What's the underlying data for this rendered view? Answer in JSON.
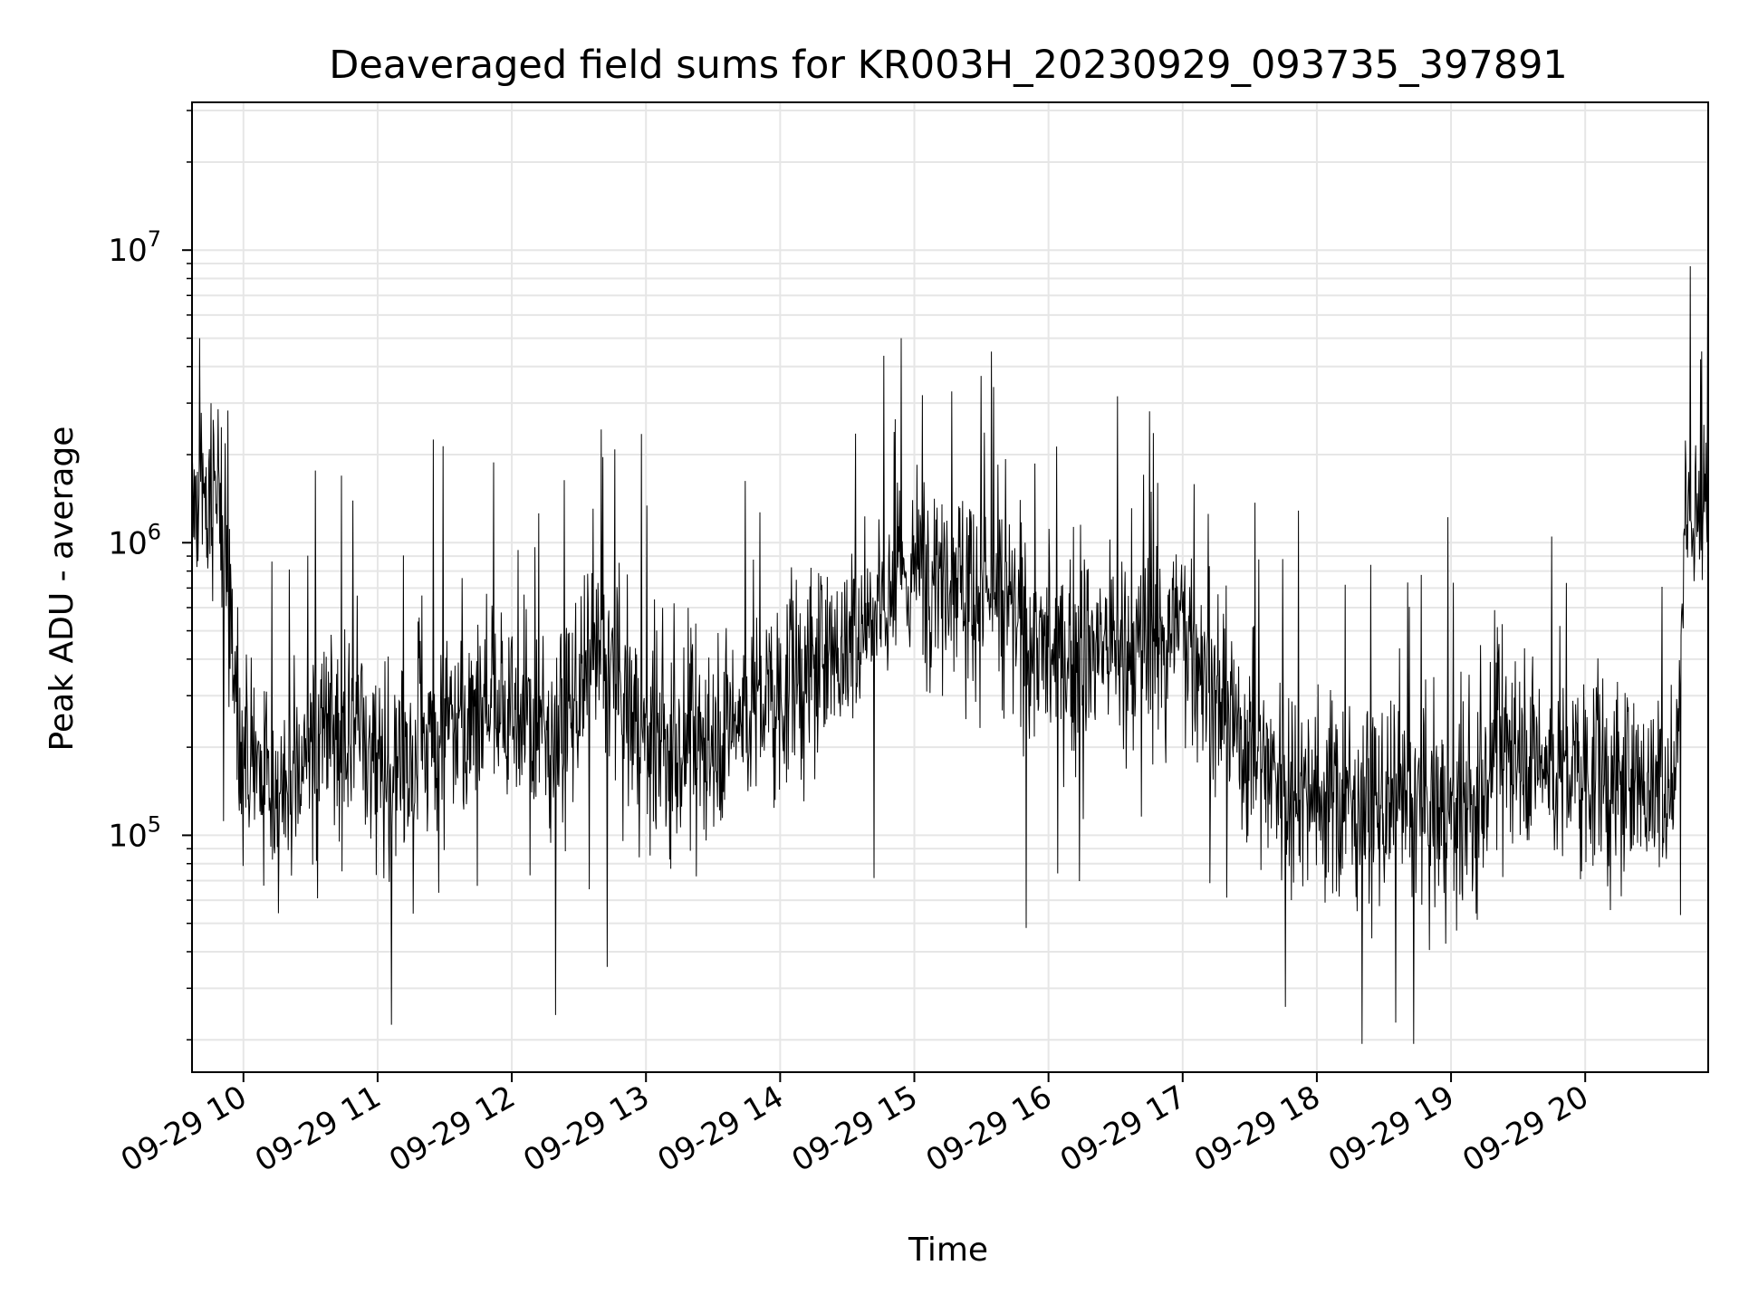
{
  "chart_data": {
    "type": "line",
    "title": "Deaveraged field sums for KR003H_20230929_093735_397891",
    "xlabel": "Time",
    "ylabel": "Peak ADU - average",
    "yscale": "log",
    "grid": true,
    "legend": "none",
    "xlim": [
      "2023-09-29 09:37",
      "2023-09-29 20:55"
    ],
    "ylim": [
      15500,
      32000000
    ],
    "x_ticks": [
      {
        "value": "2023-09-29 10:00",
        "label": "09-29 10"
      },
      {
        "value": "2023-09-29 11:00",
        "label": "09-29 11"
      },
      {
        "value": "2023-09-29 12:00",
        "label": "09-29 12"
      },
      {
        "value": "2023-09-29 13:00",
        "label": "09-29 13"
      },
      {
        "value": "2023-09-29 14:00",
        "label": "09-29 14"
      },
      {
        "value": "2023-09-29 15:00",
        "label": "09-29 15"
      },
      {
        "value": "2023-09-29 16:00",
        "label": "09-29 16"
      },
      {
        "value": "2023-09-29 17:00",
        "label": "09-29 17"
      },
      {
        "value": "2023-09-29 18:00",
        "label": "09-29 18"
      },
      {
        "value": "2023-09-29 19:00",
        "label": "09-29 19"
      },
      {
        "value": "2023-09-29 20:00",
        "label": "09-29 20"
      }
    ],
    "y_ticks": [
      {
        "value": 100000,
        "base": "10",
        "exp": "5"
      },
      {
        "value": 1000000,
        "base": "10",
        "exp": "6"
      },
      {
        "value": 10000000,
        "base": "10",
        "exp": "7"
      }
    ],
    "series": [
      {
        "color": "#000000",
        "x": [
          "2023-09-29 09:37",
          "2023-09-29 09:45",
          "2023-09-29 09:50",
          "2023-09-29 09:55",
          "2023-09-29 10:00",
          "2023-09-29 10:10",
          "2023-09-29 10:20",
          "2023-09-29 10:30",
          "2023-09-29 10:40",
          "2023-09-29 10:50",
          "2023-09-29 11:00",
          "2023-09-29 11:10",
          "2023-09-29 11:20",
          "2023-09-29 11:30",
          "2023-09-29 11:40",
          "2023-09-29 11:50",
          "2023-09-29 12:00",
          "2023-09-29 12:10",
          "2023-09-29 12:20",
          "2023-09-29 12:30",
          "2023-09-29 12:40",
          "2023-09-29 12:50",
          "2023-09-29 13:00",
          "2023-09-29 13:10",
          "2023-09-29 13:20",
          "2023-09-29 13:30",
          "2023-09-29 13:40",
          "2023-09-29 13:50",
          "2023-09-29 14:00",
          "2023-09-29 14:10",
          "2023-09-29 14:20",
          "2023-09-29 14:30",
          "2023-09-29 14:40",
          "2023-09-29 14:50",
          "2023-09-29 15:00",
          "2023-09-29 15:10",
          "2023-09-29 15:20",
          "2023-09-29 15:30",
          "2023-09-29 15:40",
          "2023-09-29 15:50",
          "2023-09-29 16:00",
          "2023-09-29 16:10",
          "2023-09-29 16:20",
          "2023-09-29 16:30",
          "2023-09-29 16:40",
          "2023-09-29 16:50",
          "2023-09-29 17:00",
          "2023-09-29 17:10",
          "2023-09-29 17:20",
          "2023-09-29 17:30",
          "2023-09-29 17:40",
          "2023-09-29 17:50",
          "2023-09-29 18:00",
          "2023-09-29 18:10",
          "2023-09-29 18:20",
          "2023-09-29 18:30",
          "2023-09-29 18:40",
          "2023-09-29 18:50",
          "2023-09-29 19:00",
          "2023-09-29 19:10",
          "2023-09-29 19:20",
          "2023-09-29 19:30",
          "2023-09-29 19:40",
          "2023-09-29 19:50",
          "2023-09-29 20:00",
          "2023-09-29 20:10",
          "2023-09-29 20:20",
          "2023-09-29 20:30",
          "2023-09-29 20:40",
          "2023-09-29 20:45",
          "2023-09-29 20:50",
          "2023-09-29 20:55"
        ],
        "y": [
          1500000,
          1500000,
          1300000,
          500000,
          180000,
          150000,
          140000,
          200000,
          230000,
          250000,
          180000,
          160000,
          190000,
          250000,
          270000,
          280000,
          260000,
          230000,
          220000,
          300000,
          400000,
          280000,
          220000,
          180000,
          200000,
          230000,
          250000,
          280000,
          300000,
          350000,
          400000,
          450000,
          600000,
          700000,
          800000,
          900000,
          800000,
          700000,
          600000,
          500000,
          400000,
          400000,
          450000,
          450000,
          400000,
          500000,
          550000,
          350000,
          250000,
          200000,
          170000,
          150000,
          140000,
          130000,
          130000,
          120000,
          120000,
          120000,
          120000,
          110000,
          200000,
          220000,
          180000,
          160000,
          170000,
          150000,
          150000,
          150000,
          150000,
          1300000,
          1400000,
          1000000
        ]
      }
    ]
  }
}
